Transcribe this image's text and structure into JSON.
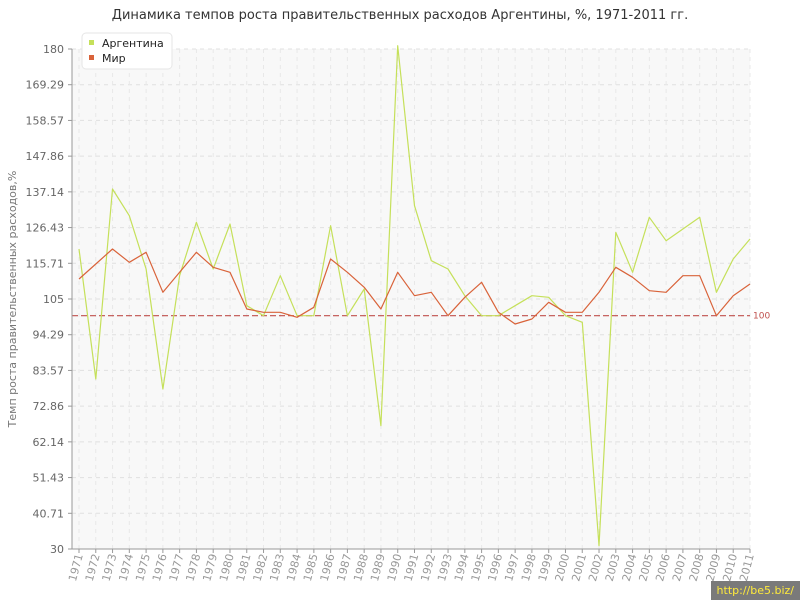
{
  "title": "Динамика темпов роста правительственных расходов Аргентины, %, 1971-2011 гг.",
  "credit": "http://be5.biz/",
  "chart_data": {
    "type": "line",
    "title": "Динамика темпов роста правительственных расходов Аргентины, %, 1971-2011 гг.",
    "xlabel": "",
    "ylabel": "Темп роста правительственных расходов,%",
    "ylim": [
      30,
      180
    ],
    "y_ticks": [
      "30",
      "40.71",
      "51.43",
      "62.14",
      "72.86",
      "83.57",
      "94.29",
      "105",
      "115.71",
      "126.43",
      "137.14",
      "147.86",
      "158.57",
      "169.29",
      "180"
    ],
    "categories": [
      "1971",
      "1972",
      "1973",
      "1974",
      "1975",
      "1976",
      "1977",
      "1978",
      "1979",
      "1980",
      "1981",
      "1982",
      "1983",
      "1984",
      "1985",
      "1986",
      "1987",
      "1988",
      "1989",
      "1990",
      "1991",
      "1992",
      "1993",
      "1994",
      "1995",
      "1996",
      "1997",
      "1998",
      "1999",
      "2000",
      "2001",
      "2002",
      "2003",
      "2004",
      "2005",
      "2006",
      "2007",
      "2008",
      "2009",
      "2010",
      "2011"
    ],
    "series": [
      {
        "name": "Аргентина",
        "color": "#c5e05a",
        "values": [
          120,
          81,
          138,
          130,
          114,
          78,
          112,
          128,
          114,
          127.5,
          103,
          100,
          112,
          100,
          100,
          127,
          100,
          108,
          67,
          181,
          133,
          116.5,
          114,
          106,
          100,
          100,
          103,
          106,
          105.5,
          100,
          98,
          31,
          125,
          113,
          129.5,
          122.5,
          126,
          129.5,
          107,
          117,
          123
        ]
      },
      {
        "name": "Мир",
        "color": "#d9633a",
        "values": [
          111,
          115.5,
          120,
          116,
          119,
          107,
          113,
          119,
          114.5,
          113,
          102,
          101,
          101,
          99.5,
          102.5,
          117,
          113,
          108.5,
          102,
          113,
          106,
          107,
          100,
          105.5,
          110,
          101,
          97.5,
          99,
          104,
          101,
          101,
          107,
          114.5,
          111.5,
          107.5,
          107,
          112,
          112,
          100,
          106,
          109.5
        ]
      }
    ],
    "reference_line": {
      "value": 100,
      "label": "100",
      "color": "#c0504d"
    },
    "legend": {
      "position": "top-left"
    },
    "grid": true
  }
}
